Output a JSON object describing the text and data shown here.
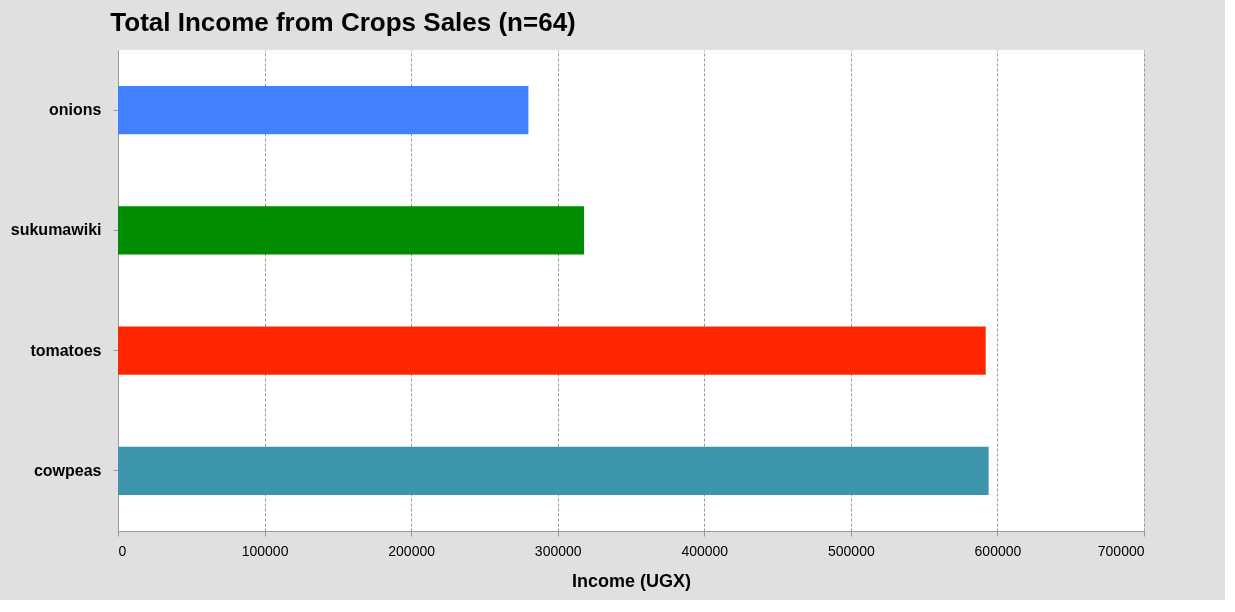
{
  "chart_data": {
    "type": "bar",
    "orientation": "horizontal",
    "title": "Total Income from Crops Sales (n=64)",
    "xlabel": "Income (UGX)",
    "categories": [
      "onions",
      "sukumawiki",
      "tomatoes",
      "cowpeas"
    ],
    "values": [
      280000,
      318000,
      592000,
      594000
    ],
    "colors": [
      "#4280ff",
      "#008c00",
      "#ff2600",
      "#3d95ab"
    ],
    "xlim": [
      0,
      700000
    ],
    "xticks": [
      0,
      100000,
      200000,
      300000,
      400000,
      500000,
      600000,
      700000
    ],
    "grid": "x"
  }
}
